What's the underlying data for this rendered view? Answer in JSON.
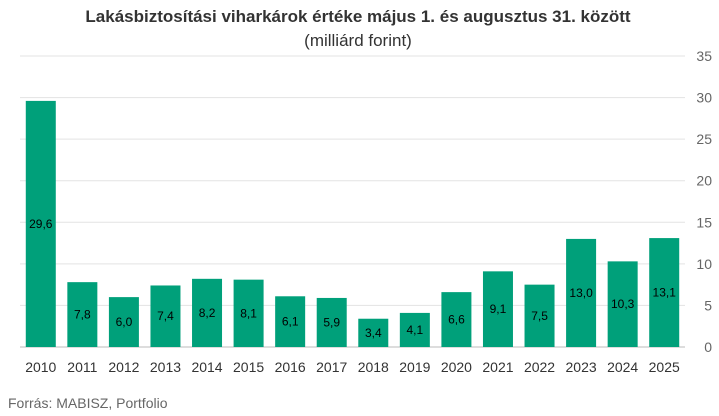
{
  "chart_data": {
    "type": "bar",
    "title": "Lakásbiztosítási viharkárok értéke május 1. és augusztus 31. között",
    "subtitle": "(milliárd forint)",
    "categories": [
      "2010",
      "2011",
      "2012",
      "2013",
      "2014",
      "2015",
      "2016",
      "2017",
      "2018",
      "2019",
      "2020",
      "2021",
      "2022",
      "2023",
      "2024",
      "2025"
    ],
    "values": [
      29.6,
      7.8,
      6.0,
      7.4,
      8.2,
      8.1,
      6.1,
      5.9,
      3.4,
      4.1,
      6.6,
      9.1,
      7.5,
      13.0,
      10.3,
      13.1
    ],
    "data_labels": [
      "29,6",
      "7,8",
      "6,0",
      "7,4",
      "8,2",
      "8,1",
      "6,1",
      "5,9",
      "3,4",
      "4,1",
      "6,6",
      "9,1",
      "7,5",
      "13,0",
      "10,3",
      "13,1"
    ],
    "ylim": [
      0,
      35
    ],
    "yticks": [
      0,
      5,
      10,
      15,
      20,
      25,
      30,
      35
    ],
    "y_axis_side": "right",
    "grid": true,
    "bar_color": "#00a07a",
    "source": "Forrás: MABISZ, Portfolio"
  }
}
